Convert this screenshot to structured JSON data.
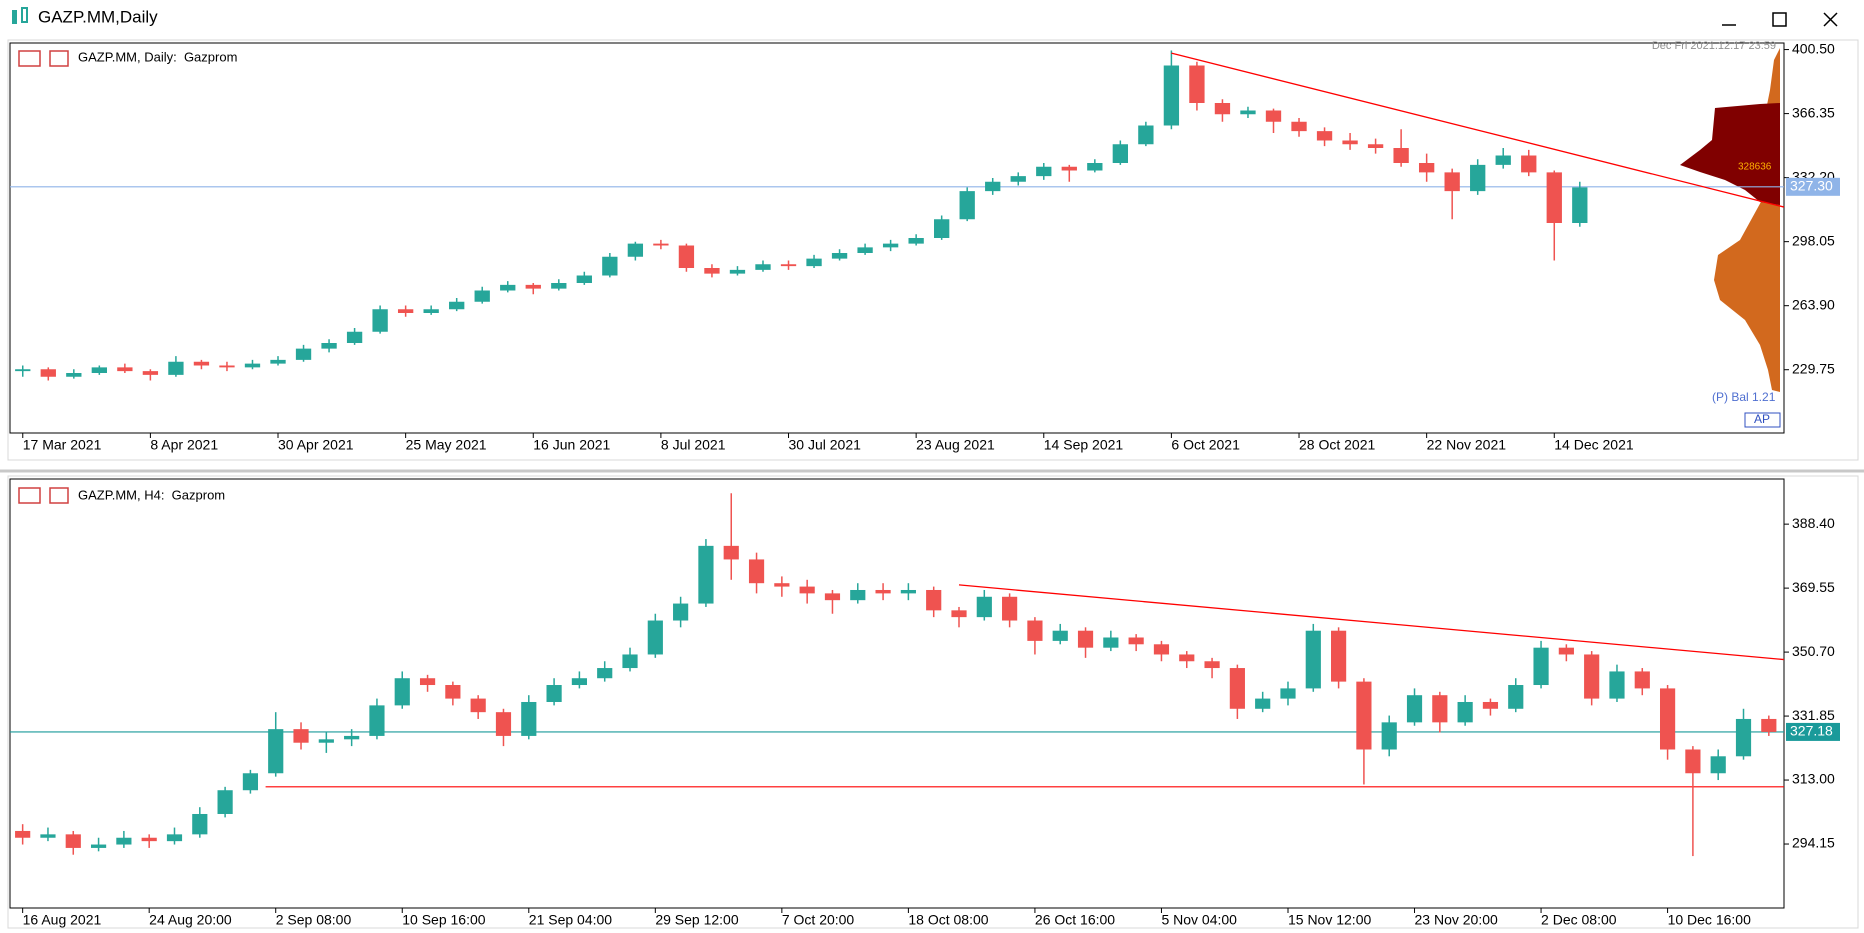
{
  "window_title": "GAZP.MM,Daily",
  "chart_data": [
    {
      "type": "candlestick",
      "label": "GAZP.MM, Daily:  Gazprom",
      "annotations": [
        "Dec Fri 2021.12.17 23:59",
        "(P) Bal 1.21",
        "AP",
        "328636"
      ],
      "up_color": "#26a69a",
      "down_color": "#ef5350",
      "xlim": [
        -0.5,
        69
      ],
      "ylim": [
        196,
        404
      ],
      "xticks": [
        {
          "value": 0,
          "label": "17 Mar 2021"
        },
        {
          "value": 5,
          "label": "8 Apr 2021"
        },
        {
          "value": 10,
          "label": "30 Apr 2021"
        },
        {
          "value": 15,
          "label": "25 May 2021"
        },
        {
          "value": 20,
          "label": "16 Jun 2021"
        },
        {
          "value": 25,
          "label": "8 Jul 2021"
        },
        {
          "value": 30,
          "label": "30 Jul 2021"
        },
        {
          "value": 35,
          "label": "23 Aug 2021"
        },
        {
          "value": 40,
          "label": "14 Sep 2021"
        },
        {
          "value": 45,
          "label": "6 Oct 2021"
        },
        {
          "value": 50,
          "label": "28 Oct 2021"
        },
        {
          "value": 55,
          "label": "22 Nov 2021"
        },
        {
          "value": 60,
          "label": "14 Dec 2021"
        }
      ],
      "yticks": [
        229.75,
        {
          "value": 263.9,
          "label": "263.90"
        },
        298.05,
        {
          "value": 332.2,
          "label": "332.20"
        },
        366.35,
        {
          "value": 400.5,
          "label": "400.50"
        }
      ],
      "hlines": [
        {
          "value": 327.3,
          "label": "327.30",
          "color": "#8fb4e8"
        }
      ],
      "trendlines": [
        {
          "x": [
            45,
            69
          ],
          "y": [
            398.6,
            316.5
          ],
          "color": "#ff0000"
        }
      ],
      "ohlc": [
        [
          229,
          232,
          226,
          230
        ],
        [
          230,
          231,
          224,
          226
        ],
        [
          226,
          230,
          225,
          228
        ],
        [
          228,
          232,
          227,
          231
        ],
        [
          231,
          233,
          228,
          229
        ],
        [
          229,
          230,
          224,
          227
        ],
        [
          227,
          237,
          226,
          234
        ],
        [
          234,
          235,
          230,
          232
        ],
        [
          232,
          234,
          229,
          231
        ],
        [
          231,
          235,
          230,
          233
        ],
        [
          233,
          237,
          232,
          235
        ],
        [
          235,
          243,
          234,
          241
        ],
        [
          241,
          246,
          239,
          244
        ],
        [
          244,
          252,
          243,
          250
        ],
        [
          250,
          264,
          249,
          262
        ],
        [
          262,
          264,
          258,
          260
        ],
        [
          260,
          264,
          259,
          262
        ],
        [
          262,
          268,
          261,
          266
        ],
        [
          266,
          274,
          265,
          272
        ],
        [
          272,
          277,
          271,
          275
        ],
        [
          275,
          276,
          270,
          273
        ],
        [
          273,
          278,
          272,
          276
        ],
        [
          276,
          282,
          275,
          280
        ],
        [
          280,
          292,
          279,
          290
        ],
        [
          290,
          298,
          288,
          297
        ],
        [
          297,
          299,
          294,
          296
        ],
        [
          296,
          297,
          282,
          284
        ],
        [
          284,
          286,
          279,
          281
        ],
        [
          281,
          285,
          280,
          283
        ],
        [
          283,
          288,
          282,
          286
        ],
        [
          286,
          288,
          283,
          285
        ],
        [
          285,
          291,
          284,
          289
        ],
        [
          289,
          294,
          288,
          292
        ],
        [
          292,
          297,
          291,
          295
        ],
        [
          295,
          299,
          293,
          297
        ],
        [
          297,
          302,
          296,
          300
        ],
        [
          300,
          312,
          299,
          310
        ],
        [
          310,
          327,
          309,
          325
        ],
        [
          325,
          332,
          323,
          330
        ],
        [
          330,
          335,
          328,
          333
        ],
        [
          333,
          340,
          331,
          338
        ],
        [
          338,
          339,
          330,
          336
        ],
        [
          336,
          342,
          335,
          340
        ],
        [
          340,
          352,
          339,
          350
        ],
        [
          350,
          362,
          349,
          360
        ],
        [
          360,
          400,
          358,
          392
        ],
        [
          392,
          394,
          368,
          372
        ],
        [
          372,
          374,
          362,
          366
        ],
        [
          366,
          370,
          364,
          368
        ],
        [
          368,
          369,
          356,
          362
        ],
        [
          362,
          364,
          354,
          357
        ],
        [
          357,
          359,
          349,
          352
        ],
        [
          352,
          356,
          347,
          350
        ],
        [
          350,
          353,
          345,
          348
        ],
        [
          348,
          358,
          338,
          340
        ],
        [
          340,
          345,
          330,
          335
        ],
        [
          335,
          337,
          310,
          325
        ],
        [
          325,
          342,
          323,
          339
        ],
        [
          339,
          348,
          337,
          344
        ],
        [
          344,
          347,
          333,
          335
        ],
        [
          335,
          336,
          288,
          308
        ],
        [
          308,
          330,
          306,
          327
        ]
      ]
    },
    {
      "type": "candlestick",
      "label": "GAZP.MM, H4:  Gazprom",
      "up_color": "#26a69a",
      "down_color": "#ef5350",
      "xlim": [
        -0.5,
        69.6
      ],
      "ylim": [
        275.3,
        401.7
      ],
      "xticks": [
        {
          "value": 0,
          "label": "16 Aug 2021"
        },
        {
          "value": 5,
          "label": "24 Aug 20:00"
        },
        {
          "value": 10,
          "label": "2 Sep 08:00"
        },
        {
          "value": 15,
          "label": "10 Sep 16:00"
        },
        {
          "value": 20,
          "label": "21 Sep 04:00"
        },
        {
          "value": 25,
          "label": "29 Sep 12:00"
        },
        {
          "value": 30,
          "label": "7 Oct 20:00"
        },
        {
          "value": 35,
          "label": "18 Oct 08:00"
        },
        {
          "value": 40,
          "label": "26 Oct 16:00"
        },
        {
          "value": 45,
          "label": "5 Nov 04:00"
        },
        {
          "value": 50,
          "label": "15 Nov 12:00"
        },
        {
          "value": 55,
          "label": "23 Nov 20:00"
        },
        {
          "value": 60,
          "label": "2 Dec 08:00"
        },
        {
          "value": 65,
          "label": "10 Dec 16:00"
        }
      ],
      "yticks": [
        294.15,
        {
          "value": 313,
          "label": "313.00"
        },
        331.85,
        {
          "value": 350.7,
          "label": "350.70"
        },
        369.55,
        {
          "value": 388.4,
          "label": "388.40"
        }
      ],
      "hlines": [
        {
          "value": 327.18,
          "label": "327.18",
          "color": "#1a9a9a"
        },
        {
          "value": 311,
          "color": "#ff0000",
          "from": 9.6
        }
      ],
      "trendlines": [
        {
          "x": [
            37,
            69.6
          ],
          "y": [
            370.5,
            348.5
          ],
          "color": "#ff0000"
        }
      ],
      "ohlc": [
        [
          298,
          300,
          294,
          296
        ],
        [
          296,
          299,
          295,
          297
        ],
        [
          297,
          298,
          291,
          293
        ],
        [
          293,
          296,
          292,
          294
        ],
        [
          294,
          298,
          293,
          296
        ],
        [
          296,
          297,
          293,
          295
        ],
        [
          295,
          299,
          294,
          297
        ],
        [
          297,
          305,
          296,
          303
        ],
        [
          303,
          311,
          302,
          310
        ],
        [
          310,
          316,
          309,
          315
        ],
        [
          315,
          333,
          314,
          328
        ],
        [
          328,
          330,
          322,
          324
        ],
        [
          324,
          327,
          321,
          325
        ],
        [
          325,
          328,
          323,
          326
        ],
        [
          326,
          337,
          325,
          335
        ],
        [
          335,
          345,
          334,
          343
        ],
        [
          343,
          344,
          339,
          341
        ],
        [
          341,
          342,
          335,
          337
        ],
        [
          337,
          338,
          331,
          333
        ],
        [
          333,
          334,
          323,
          326
        ],
        [
          326,
          338,
          325,
          336
        ],
        [
          336,
          343,
          335,
          341
        ],
        [
          341,
          345,
          340,
          343
        ],
        [
          343,
          348,
          342,
          346
        ],
        [
          346,
          352,
          345,
          350
        ],
        [
          350,
          362,
          349,
          360
        ],
        [
          360,
          367,
          358,
          365
        ],
        [
          365,
          384,
          364,
          382
        ],
        [
          382,
          397.5,
          372,
          378
        ],
        [
          378,
          380,
          368,
          371
        ],
        [
          371,
          373,
          367,
          370
        ],
        [
          370,
          372,
          365,
          368
        ],
        [
          368,
          369,
          362,
          366
        ],
        [
          366,
          371,
          365,
          369
        ],
        [
          369,
          371,
          366,
          368
        ],
        [
          368,
          371,
          366,
          369
        ],
        [
          369,
          370,
          361,
          363
        ],
        [
          363,
          364,
          358,
          361
        ],
        [
          361,
          369,
          360,
          367
        ],
        [
          367,
          368,
          358,
          360
        ],
        [
          360,
          361,
          350,
          354
        ],
        [
          354,
          359,
          353,
          357
        ],
        [
          357,
          358,
          349,
          352
        ],
        [
          352,
          357,
          351,
          355
        ],
        [
          355,
          356,
          351,
          353
        ],
        [
          353,
          354,
          348,
          350
        ],
        [
          350,
          351,
          346,
          348
        ],
        [
          348,
          349,
          343,
          346
        ],
        [
          346,
          347,
          331,
          334
        ],
        [
          334,
          339,
          333,
          337
        ],
        [
          337,
          342,
          335,
          340
        ],
        [
          340,
          359,
          339,
          357
        ],
        [
          357,
          358,
          340,
          342
        ],
        [
          342,
          343,
          311.7,
          322
        ],
        [
          322,
          332,
          320,
          330
        ],
        [
          330,
          340,
          329,
          338
        ],
        [
          338,
          339,
          327,
          330
        ],
        [
          330,
          338,
          329,
          336
        ],
        [
          336,
          337,
          332,
          334
        ],
        [
          334,
          343,
          333,
          341
        ],
        [
          341,
          354,
          340,
          352
        ],
        [
          352,
          353,
          348,
          350
        ],
        [
          350,
          351,
          335,
          337
        ],
        [
          337,
          347,
          336,
          345
        ],
        [
          345,
          346,
          338,
          340
        ],
        [
          340,
          341,
          319,
          322
        ],
        [
          322,
          323,
          290.6,
          315
        ],
        [
          315,
          322,
          313,
          320
        ],
        [
          320,
          334,
          319,
          331
        ],
        [
          331,
          332,
          326,
          327.18
        ]
      ]
    }
  ]
}
